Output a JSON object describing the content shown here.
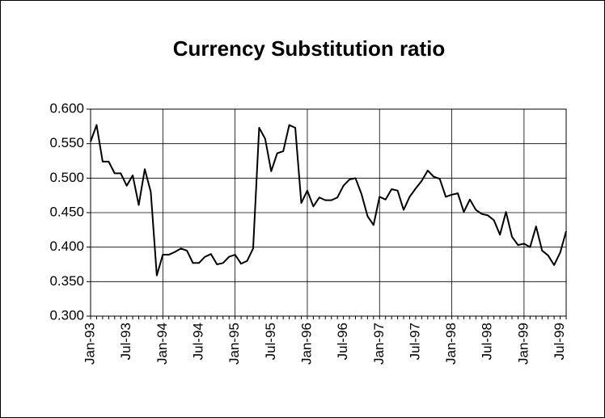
{
  "chart_data": {
    "type": "line",
    "title": "Currency Substitution ratio",
    "categories": [
      "Jan-93",
      null,
      null,
      null,
      null,
      null,
      "Jul-93",
      null,
      null,
      null,
      null,
      null,
      "Jan-94",
      null,
      null,
      null,
      null,
      null,
      "Jul-94",
      null,
      null,
      null,
      null,
      null,
      "Jan-95",
      null,
      null,
      null,
      null,
      null,
      "Jul-95",
      null,
      null,
      null,
      null,
      null,
      "Jan-96",
      null,
      null,
      null,
      null,
      null,
      "Jul-96",
      null,
      null,
      null,
      null,
      null,
      "Jan-97",
      null,
      null,
      null,
      null,
      null,
      "Jul-97",
      null,
      null,
      null,
      null,
      null,
      "Jan-98",
      null,
      null,
      null,
      null,
      null,
      "Jul-98",
      null,
      null,
      null,
      null,
      null,
      "Jan-99",
      null,
      null,
      null,
      null,
      null,
      "Jul-99",
      null
    ],
    "series": [
      {
        "color": "#000000",
        "values": [
          0.553,
          0.577,
          0.524,
          0.524,
          0.507,
          0.507,
          0.489,
          0.504,
          0.461,
          0.513,
          0.48,
          0.359,
          0.389,
          0.389,
          0.393,
          0.398,
          0.395,
          0.377,
          0.377,
          0.386,
          0.39,
          0.375,
          0.377,
          0.386,
          0.389,
          0.376,
          0.38,
          0.398,
          0.573,
          0.557,
          0.51,
          0.536,
          0.539,
          0.577,
          0.573,
          0.464,
          0.482,
          0.459,
          0.472,
          0.468,
          0.468,
          0.472,
          0.489,
          0.498,
          0.5,
          0.477,
          0.445,
          0.432,
          0.473,
          0.469,
          0.484,
          0.482,
          0.454,
          0.473,
          0.485,
          0.496,
          0.511,
          0.502,
          0.499,
          0.473,
          0.476,
          0.478,
          0.451,
          0.469,
          0.454,
          0.448,
          0.446,
          0.439,
          0.418,
          0.451,
          0.415,
          0.403,
          0.405,
          0.4,
          0.43,
          0.395,
          0.388,
          0.374,
          0.392,
          0.423
        ]
      }
    ],
    "ylim": [
      0.3,
      0.6
    ],
    "yticks": [
      {
        "value": 0.3,
        "label": "0.300"
      },
      {
        "value": 0.35,
        "label": "0.350"
      },
      {
        "value": 0.4,
        "label": "0.400"
      },
      {
        "value": 0.45,
        "label": "0.450"
      },
      {
        "value": 0.5,
        "label": "0.500"
      },
      {
        "value": 0.55,
        "label": "0.550"
      },
      {
        "value": 0.6,
        "label": "0.600"
      }
    ],
    "grid": true
  }
}
